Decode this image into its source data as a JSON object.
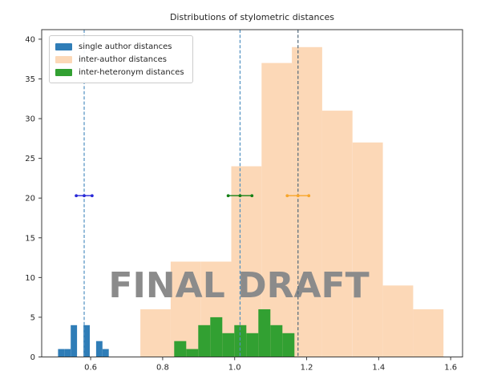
{
  "figure": {
    "watermark": "FINAL DRAFT"
  },
  "chart_data": {
    "type": "histogram",
    "title": "Distributions of stylometric distances",
    "xlabel": "",
    "ylabel": "",
    "grid": false,
    "legend_position": "upper left",
    "xlim": [
      0.464,
      1.633
    ],
    "ylim": [
      0,
      41.2
    ],
    "x_ticks": [
      0.6,
      0.8,
      1.0,
      1.2,
      1.4,
      1.6
    ],
    "x_tick_labels": [
      "0.6",
      "0.8",
      "1.0",
      "1.2",
      "1.4",
      "1.6"
    ],
    "y_ticks": [
      0,
      5,
      10,
      15,
      20,
      25,
      30,
      35,
      40
    ],
    "y_tick_labels": [
      "0",
      "5",
      "10",
      "15",
      "20",
      "25",
      "30",
      "35",
      "40"
    ],
    "series": [
      {
        "name": "single author distances",
        "color": "#2f7db7",
        "bin_start": 0.5095,
        "bin_width": 0.0176,
        "counts": [
          1,
          1,
          4,
          0,
          4,
          0,
          2,
          1
        ]
      },
      {
        "name": "inter-author distances",
        "color": "#fcd8b7",
        "bin_start": 0.738,
        "bin_width": 0.0842,
        "counts": [
          6,
          12,
          12,
          24,
          37,
          39,
          31,
          27,
          9,
          6
        ]
      },
      {
        "name": "inter-heteronym distances",
        "color": "#32a032",
        "bin_start": 0.832,
        "bin_width": 0.0334,
        "counts": [
          2,
          1,
          4,
          5,
          3,
          4,
          3,
          6,
          4,
          3
        ]
      }
    ],
    "vlines": [
      {
        "x": 0.582,
        "color": "#4e8fc0",
        "style": "dashed"
      },
      {
        "x": 1.015,
        "color": "#4e8fc0",
        "style": "dashed"
      },
      {
        "x": 1.176,
        "color": "#51697a",
        "style": "dashed"
      }
    ],
    "error_bars": [
      {
        "x": 0.582,
        "y": 20.3,
        "xerr": 0.022,
        "color": "#2828d8"
      },
      {
        "x": 1.015,
        "y": 20.3,
        "xerr": 0.033,
        "color": "#158015"
      },
      {
        "x": 1.176,
        "y": 20.3,
        "xerr": 0.03,
        "color": "#f7a62a"
      }
    ]
  }
}
